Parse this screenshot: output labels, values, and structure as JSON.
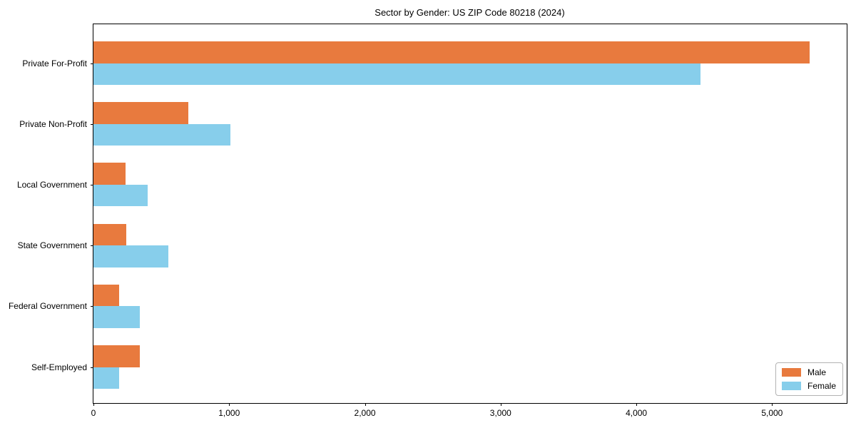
{
  "chart_data": {
    "type": "bar",
    "orientation": "horizontal",
    "title": "Sector by Gender: US ZIP Code 80218 (2024)",
    "categories": [
      "Private For-Profit",
      "Private Non-Profit",
      "Local Government",
      "State Government",
      "Federal Government",
      "Self-Employed"
    ],
    "series": [
      {
        "name": "Male",
        "color": "#e87a3e",
        "values": [
          5278,
          697,
          236,
          242,
          189,
          339
        ]
      },
      {
        "name": "Female",
        "color": "#87ceeb",
        "values": [
          4475,
          1008,
          402,
          551,
          341,
          189
        ]
      }
    ],
    "xlabel": "",
    "ylabel": "",
    "xlim": [
      0,
      5550
    ],
    "xticks": [
      0,
      1000,
      2000,
      3000,
      4000,
      5000
    ],
    "xtick_labels": [
      "0",
      "1,000",
      "2,000",
      "3,000",
      "4,000",
      "5,000"
    ],
    "grid": false,
    "legend_position": "lower right",
    "background_color": "#ffffff",
    "spine_color": "#000000"
  }
}
